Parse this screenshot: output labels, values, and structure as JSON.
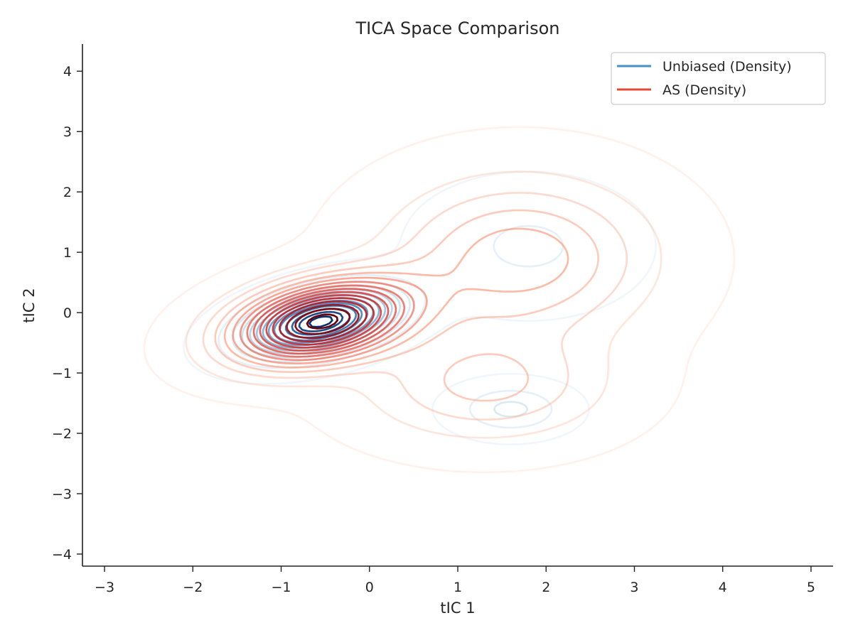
{
  "chart_data": {
    "type": "contour",
    "title": "TICA Space Comparison",
    "xlabel": "tIC 1",
    "ylabel": "tIC 2",
    "xlim": [
      -3.25,
      5.25
    ],
    "ylim": [
      -4.2,
      4.45
    ],
    "xticks": [
      -3,
      -2,
      -1,
      0,
      1,
      2,
      3,
      4,
      5
    ],
    "yticks": [
      -4,
      -3,
      -2,
      -1,
      0,
      1,
      2,
      3,
      4
    ],
    "xtick_labels": [
      "−3",
      "−2",
      "−1",
      "0",
      "1",
      "2",
      "3",
      "4",
      "5"
    ],
    "ytick_labels": [
      "−4",
      "−3",
      "−2",
      "−1",
      "0",
      "1",
      "2",
      "3",
      "4"
    ],
    "grid": false,
    "legend_position": "top-right",
    "series": [
      {
        "name": "Unbiased (Density)",
        "color": "#4292c6",
        "colormap": "Blues",
        "levels": 14,
        "components": [
          {
            "weight": 1.0,
            "mean": [
              -0.55,
              -0.15
            ],
            "sd": [
              0.55,
              0.3
            ],
            "rotation_deg": 22
          },
          {
            "weight": 0.18,
            "mean": [
              1.6,
              -1.6
            ],
            "sd": [
              0.38,
              0.25
            ],
            "rotation_deg": 0
          },
          {
            "weight": 0.1,
            "mean": [
              1.8,
              1.1
            ],
            "sd": [
              0.7,
              0.6
            ],
            "rotation_deg": 0
          }
        ]
      },
      {
        "name": "AS (Density)",
        "color": "#e34a33",
        "colormap": "Reds",
        "levels": 16,
        "components": [
          {
            "weight": 1.0,
            "mean": [
              -0.55,
              -0.15
            ],
            "sd": [
              0.7,
              0.42
            ],
            "rotation_deg": 20
          },
          {
            "weight": 0.32,
            "mean": [
              1.7,
              0.9
            ],
            "sd": [
              0.95,
              0.85
            ],
            "rotation_deg": 0
          },
          {
            "weight": 0.22,
            "mean": [
              1.3,
              -1.2
            ],
            "sd": [
              0.9,
              0.6
            ],
            "rotation_deg": 0
          }
        ]
      }
    ]
  }
}
